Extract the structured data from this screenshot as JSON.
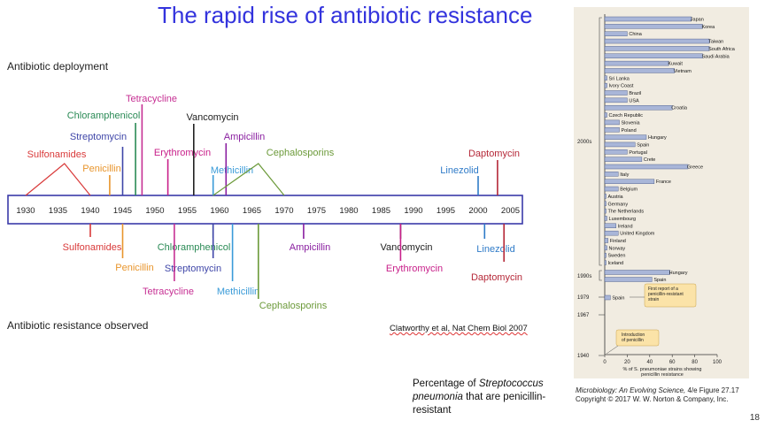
{
  "slide": {
    "title": "The rapid rise of antibiotic resistance",
    "deployment_label": "Antibiotic deployment",
    "resistance_label": "Antibiotic resistance observed",
    "citation": "Clatworthy et al, Nat Chem Biol 2007",
    "caption_prefix": "Percentage of ",
    "caption_italic": "Streptococcus pneumonia",
    "caption_suffix": " that are penicillin-resistant",
    "page_number": "18"
  },
  "timeline": {
    "years": [
      "1930",
      "1935",
      "1940",
      "1945",
      "1950",
      "1955",
      "1960",
      "1965",
      "1970",
      "1975",
      "1980",
      "1985",
      "1990",
      "1995",
      "2000",
      "2005"
    ],
    "deployment": [
      {
        "name": "Sulfonamides",
        "year": 1935,
        "color": "#d93a3a"
      },
      {
        "name": "Penicillin",
        "year": 1943,
        "color": "#e8952c"
      },
      {
        "name": "Streptomycin",
        "year": 1945,
        "color": "#3f46a8"
      },
      {
        "name": "Chloramphenicol",
        "year": 1947,
        "color": "#2a8a55"
      },
      {
        "name": "Tetracycline",
        "year": 1948,
        "color": "#c62f93"
      },
      {
        "name": "Erythromycin",
        "year": 1952,
        "color": "#c8208a"
      },
      {
        "name": "Vancomycin",
        "year": 1956,
        "color": "#222222"
      },
      {
        "name": "Methicillin",
        "year": 1959,
        "color": "#3a9bd8"
      },
      {
        "name": "Ampicillin",
        "year": 1961,
        "color": "#8a1fa0"
      },
      {
        "name": "Cephalosporins",
        "year": 1964,
        "color": "#6c9a3a"
      },
      {
        "name": "Linezolid",
        "year": 2000,
        "color": "#2f7bc8"
      },
      {
        "name": "Daptomycin",
        "year": 2003,
        "color": "#b52838"
      }
    ],
    "resistance": [
      {
        "name": "Sulfonamides",
        "year": 1940,
        "color": "#d93a3a"
      },
      {
        "name": "Penicillin",
        "year": 1945,
        "color": "#e8952c"
      },
      {
        "name": "Chloramphenicol",
        "year": 1959,
        "color": "#2a8a55"
      },
      {
        "name": "Streptomycin",
        "year": 1959,
        "color": "#3f46a8"
      },
      {
        "name": "Tetracycline",
        "year": 1953,
        "color": "#c62f93"
      },
      {
        "name": "Methicillin",
        "year": 1962,
        "color": "#3a9bd8"
      },
      {
        "name": "Cephalosporins",
        "year": 1966,
        "color": "#6c9a3a"
      },
      {
        "name": "Ampicillin",
        "year": 1973,
        "color": "#8a1fa0"
      },
      {
        "name": "Vancomycin",
        "year": 1988,
        "color": "#222222"
      },
      {
        "name": "Erythromycin",
        "year": 1988,
        "color": "#c8208a"
      },
      {
        "name": "Linezolid",
        "year": 2001,
        "color": "#2f7bc8"
      },
      {
        "name": "Daptomycin",
        "year": 2004,
        "color": "#b52838"
      }
    ]
  },
  "figure": {
    "x_axis_label": "% of S. pneumoniae strains showing penicillin resistance",
    "x_ticks": [
      "0",
      "20",
      "40",
      "60",
      "80",
      "100"
    ],
    "y_groups": [
      {
        "label": "2000s",
        "countries": [
          "Japan",
          "Korea",
          "China",
          "Taiwan",
          "South Africa",
          "Saudi Arabia",
          "Kuwait",
          "Vietnam",
          "Sri Lanka",
          "Ivory Coast",
          "Brazil",
          "USA",
          "Croatia",
          "Czech Republic",
          "Slovenia",
          "Poland",
          "Hungary",
          "Spain",
          "Portugal",
          "Crete",
          "Greece",
          "Italy",
          "France",
          "Belgium",
          "Austria",
          "Germany",
          "The Netherlands",
          "Luxembourg",
          "Ireland",
          "United Kingdom",
          "Finland",
          "Norway",
          "Sweden",
          "Iceland"
        ]
      },
      {
        "label": "1990s",
        "countries": [
          "Hungary",
          "Spain"
        ]
      },
      {
        "label": "1979",
        "countries": [
          "Spain"
        ]
      },
      {
        "label": "1967",
        "countries": []
      },
      {
        "label": "1940",
        "countries": []
      }
    ],
    "annotations": {
      "first_report": "First report of a penicillin-resistant strain",
      "introduction": "Introduction of penicillin"
    },
    "credit_title": "Microbiology: An Evolving Science,",
    "credit_rest": " 4/e  Figure 27.17",
    "credit_copyright": "Copyright © 2017 W. W. Norton & Company, Inc."
  },
  "chart_data": {
    "type": "bar",
    "categories": [
      "Japan",
      "Korea",
      "China",
      "Taiwan",
      "South Africa",
      "Saudi Arabia",
      "Kuwait",
      "Vietnam",
      "Sri Lanka",
      "Ivory Coast",
      "Brazil",
      "USA",
      "Croatia",
      "Czech Republic",
      "Slovenia",
      "Poland",
      "Hungary",
      "Spain",
      "Portugal",
      "Crete",
      "Greece",
      "Italy",
      "France",
      "Belgium",
      "Austria",
      "Germany",
      "The Netherlands",
      "Luxembourg",
      "Ireland",
      "United Kingdom",
      "Finland",
      "Norway",
      "Sweden",
      "Iceland",
      "Hungary",
      "Spain",
      "Spain"
    ],
    "values": [
      77,
      87,
      20,
      93,
      93,
      87,
      57,
      62,
      2,
      2,
      20,
      20,
      60,
      2,
      13,
      13,
      37,
      27,
      20,
      33,
      74,
      12,
      44,
      12,
      1,
      1,
      1,
      2,
      10,
      12,
      3,
      2,
      1,
      1,
      58,
      42,
      5
    ],
    "groups": [
      "2000s",
      "2000s",
      "2000s",
      "2000s",
      "2000s",
      "2000s",
      "2000s",
      "2000s",
      "2000s",
      "2000s",
      "2000s",
      "2000s",
      "2000s",
      "2000s",
      "2000s",
      "2000s",
      "2000s",
      "2000s",
      "2000s",
      "2000s",
      "2000s",
      "2000s",
      "2000s",
      "2000s",
      "2000s",
      "2000s",
      "2000s",
      "2000s",
      "2000s",
      "2000s",
      "2000s",
      "2000s",
      "2000s",
      "2000s",
      "1990s",
      "1990s",
      "1979"
    ],
    "xlabel": "% of S. pneumoniae strains showing penicillin resistance",
    "xlim": [
      0,
      100
    ],
    "orientation": "horizontal",
    "bar_color": "#a9b6d8"
  }
}
